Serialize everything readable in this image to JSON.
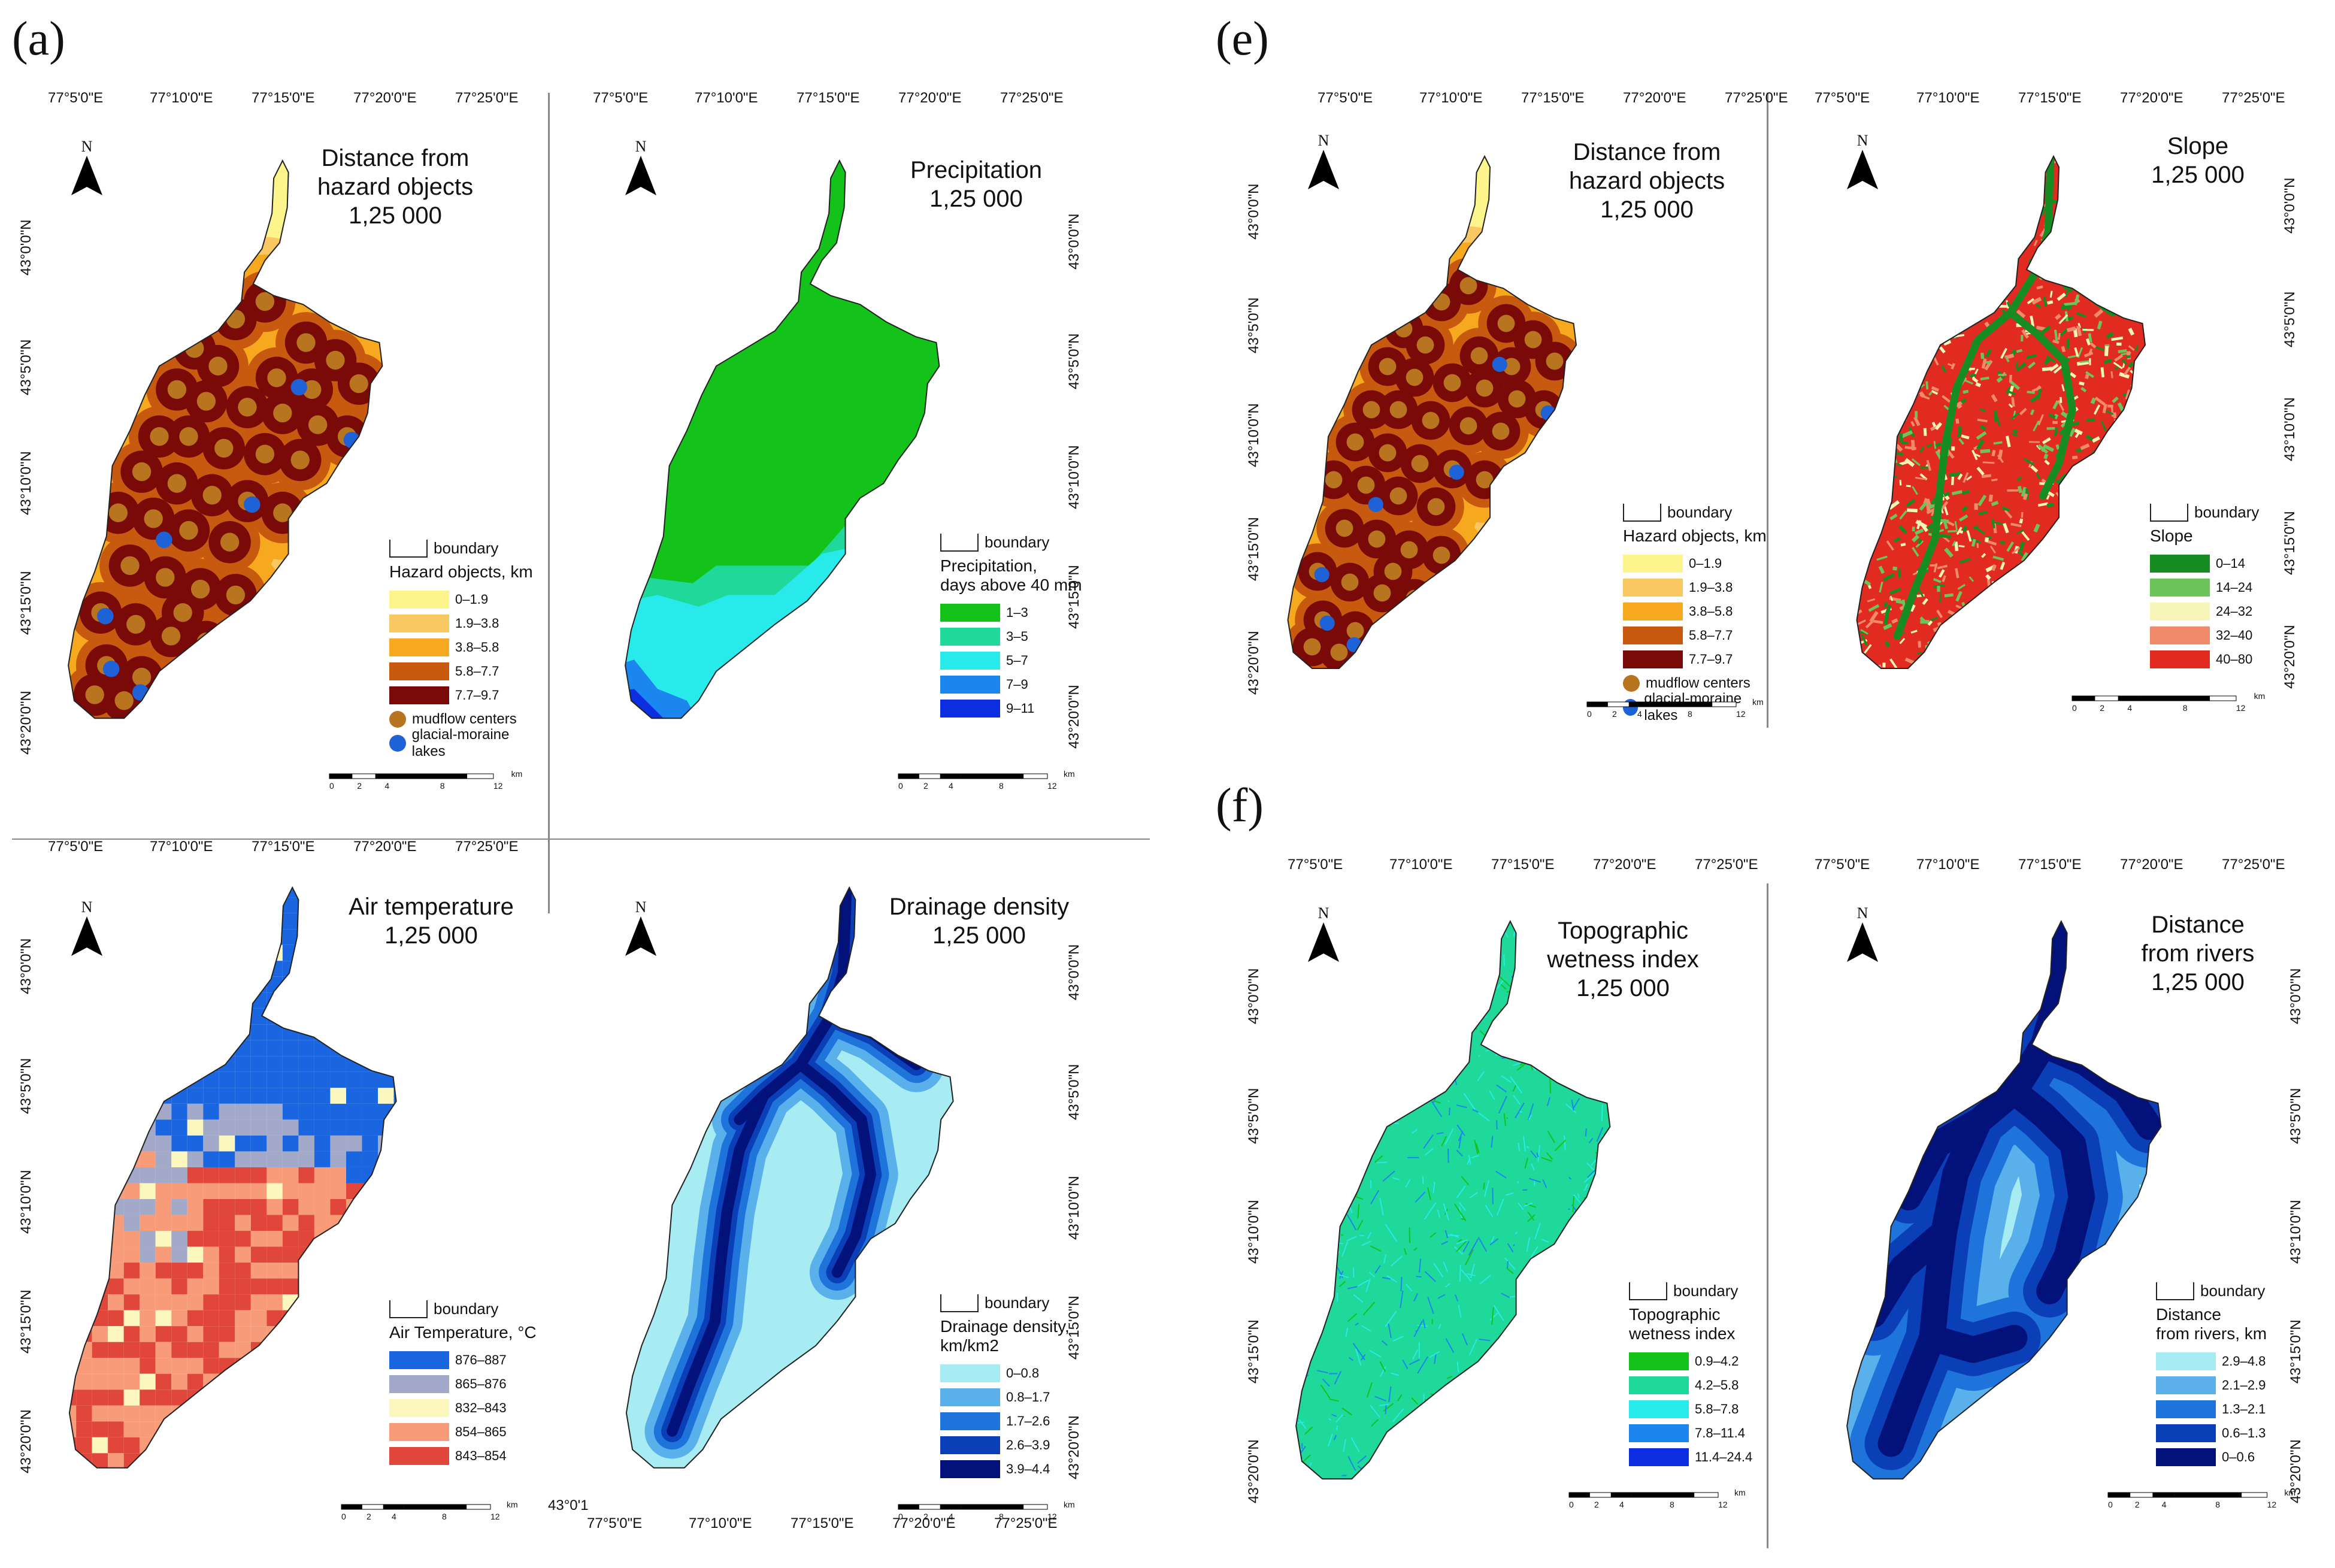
{
  "panel_labels": {
    "a": "(a)",
    "e": "(e)",
    "f": "(f)"
  },
  "lon_ticks_a": [
    "77°5'0\"E",
    "77°10'0\"E",
    "77°15'0\"E",
    "77°20'0\"E",
    "77°25'0\"E"
  ],
  "lon_ticks_a_b": [
    "77°5'0\"E",
    "77°10'0\"E",
    "77°15'0\"E",
    "77°20'0\"E",
    "77°25'0\"E"
  ],
  "lat_ticks": [
    "43°20'0\"N",
    "43°15'0\"N",
    "43°10'0\"N",
    "43°5'0\"N",
    "43°0'0\"N"
  ],
  "scale_numbers": [
    "0",
    "2",
    "4",
    "8",
    "12"
  ],
  "scale_unit": "km",
  "north_label": "N",
  "stray_label": "43°0'1",
  "maps": {
    "hazard_a": {
      "title_line1": "Distance from",
      "title_line2": "hazard objects",
      "scale": "1,25 000",
      "legend_boundary": "boundary",
      "legend_title": "Hazard objects, km",
      "classes": [
        "0–1.9",
        "1.9–3.8",
        "3.8–5.8",
        "5.8–7.7",
        "7.7–9.7"
      ],
      "colors": [
        "#fdf58c",
        "#f9c862",
        "#f6a91f",
        "#c85a10",
        "#7a0a08"
      ],
      "marker1": "mudflow centers",
      "marker2": "glacial-moraine lakes",
      "marker1_color": "#b8741f",
      "marker2_color": "#1f62d8"
    },
    "precip": {
      "title_line1": "Precipitation",
      "scale": "1,25 000",
      "legend_boundary": "boundary",
      "legend_title1": "Precipitation,",
      "legend_title2": "days above 40 mm",
      "classes": [
        "1–3",
        "3–5",
        "5–7",
        "7–9",
        "9–11"
      ],
      "colors": [
        "#13c31a",
        "#1ed99a",
        "#29eaea",
        "#1b86ee",
        "#0b2ee0"
      ]
    },
    "airtemp": {
      "title_line1": "Air temperature",
      "scale": "1,25 000",
      "legend_boundary": "boundary",
      "legend_title": "Air Temperature, °C",
      "classes": [
        "876–887",
        "865–876",
        "832–843",
        "854–865",
        "843–854"
      ],
      "colors": [
        "#1a66e0",
        "#a2a9c9",
        "#fbf7bf",
        "#f79b78",
        "#e0473a"
      ]
    },
    "drainage": {
      "title_line1": "Drainage density",
      "scale": "1,25 000",
      "legend_boundary": "boundary",
      "legend_title1": "Drainage density,",
      "legend_title2": "km/km2",
      "classes": [
        "0–0.8",
        "0.8–1.7",
        "1.7–2.6",
        "2.6–3.9",
        "3.9–4.4"
      ],
      "colors": [
        "#a7ecf2",
        "#5ab0ea",
        "#1f74db",
        "#0b3fb8",
        "#03127a"
      ]
    },
    "hazard_e": {
      "title_line1": "Distance from",
      "title_line2": "hazard objects",
      "scale": "1,25 000",
      "legend_boundary": "boundary",
      "legend_title": "Hazard objects, km",
      "classes": [
        "0–1.9",
        "1.9–3.8",
        "3.8–5.8",
        "5.8–7.7",
        "7.7–9.7"
      ],
      "colors": [
        "#fdf58c",
        "#f9c862",
        "#f6a91f",
        "#c85a10",
        "#7a0a08"
      ],
      "marker1": "mudflow centers",
      "marker2": "glacial-moraine lakes",
      "marker1_color": "#b8741f",
      "marker2_color": "#1f62d8"
    },
    "slope": {
      "title_line1": "Slope",
      "scale": "1,25 000",
      "legend_boundary": "boundary",
      "legend_title": "Slope",
      "classes": [
        "0–14",
        "14–24",
        "24–32",
        "32–40",
        "40–80"
      ],
      "colors": [
        "#168c22",
        "#6cc45a",
        "#f7f4b8",
        "#f08a6a",
        "#e12b20"
      ]
    },
    "twi": {
      "title_line1": "Topographic",
      "title_line2": "wetness index",
      "scale": "1,25 000",
      "legend_boundary": "boundary",
      "legend_title1": "Topographic",
      "legend_title2": "wetness index",
      "classes": [
        "0.9–4.2",
        "4.2–5.8",
        "5.8–7.8",
        "7.8–11.4",
        "11.4–24.4"
      ],
      "colors": [
        "#13c31a",
        "#1ed99a",
        "#29eaea",
        "#1b86ee",
        "#0b2ee0"
      ]
    },
    "rivers": {
      "title_line1": "Distance",
      "title_line2": "from rivers",
      "scale": "1,25 000",
      "legend_boundary": "boundary",
      "legend_title1": "Distance",
      "legend_title2": "from rivers, km",
      "classes": [
        "2.9–4.8",
        "2.1–2.9",
        "1.3–2.1",
        "0.6–1.3",
        "0–0.6"
      ],
      "colors": [
        "#a7ecf2",
        "#5ab0ea",
        "#1f74db",
        "#0b3fb8",
        "#03127a"
      ]
    }
  }
}
